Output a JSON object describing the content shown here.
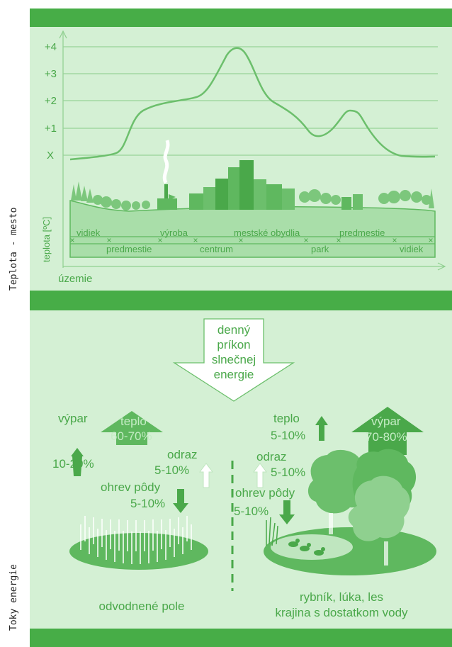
{
  "side_labels": {
    "top": "Teplota - mesto",
    "bottom": "Toky energie"
  },
  "chart": {
    "y_ticks": [
      "+4",
      "+3",
      "+2",
      "+1",
      "X"
    ],
    "y_label": "teplota [ºC]",
    "x_label": "územie",
    "zones_upper": [
      "vidiek",
      "výroba",
      "mestské obydlia",
      "predmestie"
    ],
    "zones_lower": [
      "predmestie",
      "centrum",
      "park",
      "vidiek"
    ]
  },
  "energy": {
    "sun_lines": [
      "denný",
      "príkon",
      "slnečnej",
      "energie"
    ],
    "field": {
      "vypar": "výpar",
      "vypar_value": "10-20%",
      "teplo": "teplo",
      "teplo_value": "60-70%",
      "odraz": "odraz",
      "odraz_value": "5-10%",
      "ohrev": "ohrev pôdy",
      "ohrev_value": "5-10%",
      "caption": "odvodnené pole"
    },
    "landscape": {
      "teplo": "teplo",
      "teplo_value": "5-10%",
      "vypar": "výpar",
      "vypar_value": "70-80%",
      "odraz": "odraz",
      "odraz_value": "5-10%",
      "ohrev": "ohrev pôdy",
      "ohrev_value": "5-10%",
      "caption_line1": "rybník, lúka, les",
      "caption_line2": "krajina s dostatkom vody"
    }
  },
  "colors": {
    "band": "#47ad47",
    "panel": "#d4f0d4",
    "line": "#5fb85f",
    "text": "#4aa84a"
  }
}
